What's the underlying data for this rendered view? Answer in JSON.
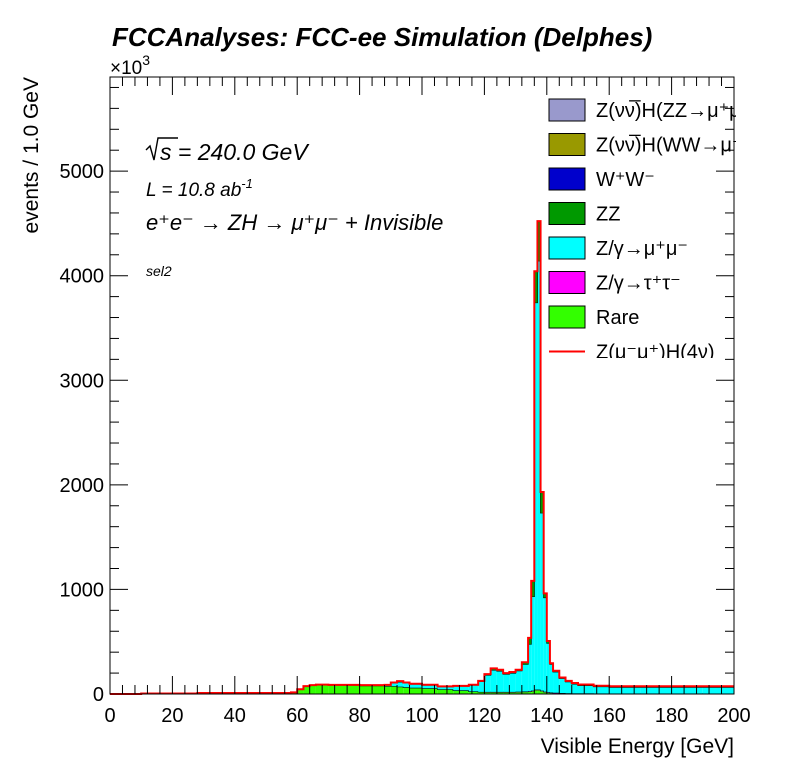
{
  "chart_data": {
    "type": "area",
    "style": "stacked-histogram",
    "title": "FCCAnalyses: FCC-ee Simulation (Delphes)",
    "xlabel": "Visible Energy [GeV]",
    "ylabel": "events / 1.0 GeV",
    "y_multiplier": "×10",
    "y_multiplier_exp": "3",
    "xlim": [
      0,
      200
    ],
    "ylim": [
      0,
      5900
    ],
    "x_ticks": [
      0,
      20,
      40,
      60,
      80,
      100,
      120,
      140,
      160,
      180,
      200
    ],
    "y_ticks": [
      0,
      1000,
      2000,
      3000,
      4000,
      5000
    ],
    "annotations": {
      "sqrt_s": "s",
      "energy": " = 240.0 GeV",
      "lumi_main": "L = 10.8 ab",
      "lumi_exp": "-1",
      "process": "e⁺e⁻ → ZH → μ⁺μ⁻ + Invisible",
      "selection": "sel2"
    },
    "x_edges": [
      0,
      10,
      28,
      58,
      60,
      62,
      64,
      66,
      70,
      80,
      88,
      90,
      92,
      94,
      96,
      100,
      105,
      110,
      115,
      118,
      120,
      122,
      124,
      126,
      128,
      130,
      132,
      134,
      135,
      136,
      137,
      138,
      139,
      140,
      141,
      142,
      144,
      146,
      148,
      150,
      155,
      160,
      170,
      180,
      190,
      200
    ],
    "series": [
      {
        "name": "Rare",
        "color": "#33ff00",
        "values": [
          0,
          5,
          10,
          15,
          45,
          75,
          85,
          90,
          85,
          80,
          75,
          75,
          70,
          65,
          60,
          55,
          45,
          35,
          25,
          20,
          18,
          18,
          18,
          18,
          18,
          20,
          22,
          25,
          30,
          40,
          40,
          30,
          20,
          15,
          12,
          10,
          8,
          6,
          5,
          5,
          5,
          4,
          4,
          4,
          4
        ]
      },
      {
        "name": "Z/γ→τ⁺τ⁻",
        "color": "#ff00ff",
        "values": [
          0,
          0,
          0,
          0,
          0,
          0,
          0,
          0,
          0,
          0,
          0,
          0,
          0,
          0,
          0,
          0,
          0,
          0,
          0,
          0,
          2,
          2,
          2,
          2,
          2,
          2,
          2,
          2,
          2,
          2,
          2,
          2,
          2,
          2,
          2,
          2,
          1,
          1,
          1,
          1,
          0,
          0,
          0,
          0,
          0
        ]
      },
      {
        "name": "Z/γ→μ⁺μ⁻",
        "color": "#00ffff",
        "values": [
          0,
          0,
          0,
          0,
          0,
          0,
          0,
          0,
          2,
          5,
          10,
          30,
          45,
          40,
          35,
          30,
          25,
          40,
          60,
          100,
          160,
          210,
          200,
          170,
          180,
          200,
          260,
          450,
          900,
          3700,
          4100,
          1700,
          900,
          470,
          270,
          200,
          140,
          110,
          90,
          75,
          65,
          60,
          60,
          60,
          60
        ]
      },
      {
        "name": "ZZ",
        "color": "#009900",
        "values": [
          0,
          0,
          0,
          0,
          0,
          0,
          0,
          0,
          0,
          0,
          2,
          5,
          8,
          5,
          3,
          3,
          3,
          3,
          3,
          5,
          10,
          15,
          12,
          10,
          10,
          10,
          20,
          60,
          150,
          300,
          380,
          200,
          40,
          20,
          10,
          8,
          6,
          5,
          5,
          5,
          4,
          4,
          4,
          4,
          4
        ]
      },
      {
        "name": "W⁺W⁻",
        "color": "#0000cc",
        "values": [
          0,
          0,
          0,
          0,
          0,
          0,
          0,
          0,
          0,
          0,
          0,
          0,
          0,
          0,
          0,
          0,
          0,
          0,
          0,
          0,
          0,
          0,
          0,
          0,
          0,
          0,
          0,
          0,
          0,
          0,
          0,
          0,
          0,
          0,
          0,
          2,
          3,
          3,
          4,
          5,
          5,
          6,
          6,
          6,
          6
        ]
      },
      {
        "name": "Z(νν̅)H(WW→μ⁺νμ⁻ν̅)",
        "color": "#999900",
        "values": [
          0,
          0,
          0,
          0,
          0,
          0,
          0,
          0,
          0,
          0,
          0,
          0,
          0,
          0,
          0,
          0,
          0,
          0,
          0,
          0,
          0,
          0,
          0,
          0,
          0,
          0,
          0,
          0,
          0,
          0,
          0,
          0,
          0,
          0,
          0,
          0,
          0,
          0,
          0,
          0,
          0,
          0,
          0,
          0,
          0
        ]
      },
      {
        "name": "Z(νν̅)H(ZZ→μ⁺μ⁻ν̅ν)",
        "color": "#9999cc",
        "values": [
          0,
          0,
          0,
          0,
          0,
          0,
          0,
          0,
          0,
          0,
          0,
          0,
          0,
          0,
          0,
          0,
          0,
          0,
          0,
          0,
          0,
          0,
          0,
          0,
          0,
          0,
          0,
          0,
          0,
          0,
          0,
          0,
          0,
          0,
          0,
          0,
          0,
          0,
          0,
          0,
          0,
          0,
          0,
          0,
          0
        ]
      }
    ],
    "signal": {
      "name": "Z(μ⁻μ⁺)H(4ν)",
      "color": "#ff0000",
      "values": [
        0,
        0,
        0,
        0,
        0,
        0,
        0,
        0,
        0,
        0,
        0,
        0,
        0,
        0,
        0,
        0,
        0,
        0,
        0,
        0,
        0,
        0,
        0,
        0,
        0,
        0,
        0,
        0,
        0,
        0,
        0,
        0,
        0,
        0,
        0,
        0,
        0,
        0,
        0,
        0,
        0,
        0,
        0,
        0,
        0
      ]
    },
    "legend": {
      "position": "top-right",
      "entries": [
        {
          "label": "Z(νν̅)H(ZZ→μ⁺μ⁻ν̅ν)",
          "color": "#9999cc",
          "kind": "box"
        },
        {
          "label": "Z(νν̅)H(WW→μ⁺νμ⁻ν̅)",
          "color": "#999900",
          "kind": "box"
        },
        {
          "label": "W⁺W⁻",
          "color": "#0000cc",
          "kind": "box"
        },
        {
          "label": "ZZ",
          "color": "#009900",
          "kind": "box"
        },
        {
          "label": "Z/γ→μ⁺μ⁻",
          "color": "#00ffff",
          "kind": "box"
        },
        {
          "label": "Z/γ→τ⁺τ⁻",
          "color": "#ff00ff",
          "kind": "box"
        },
        {
          "label": "Rare",
          "color": "#33ff00",
          "kind": "box"
        },
        {
          "label": "Z(μ⁻μ⁺)H(4ν)",
          "color": "#ff0000",
          "kind": "line"
        }
      ]
    }
  }
}
